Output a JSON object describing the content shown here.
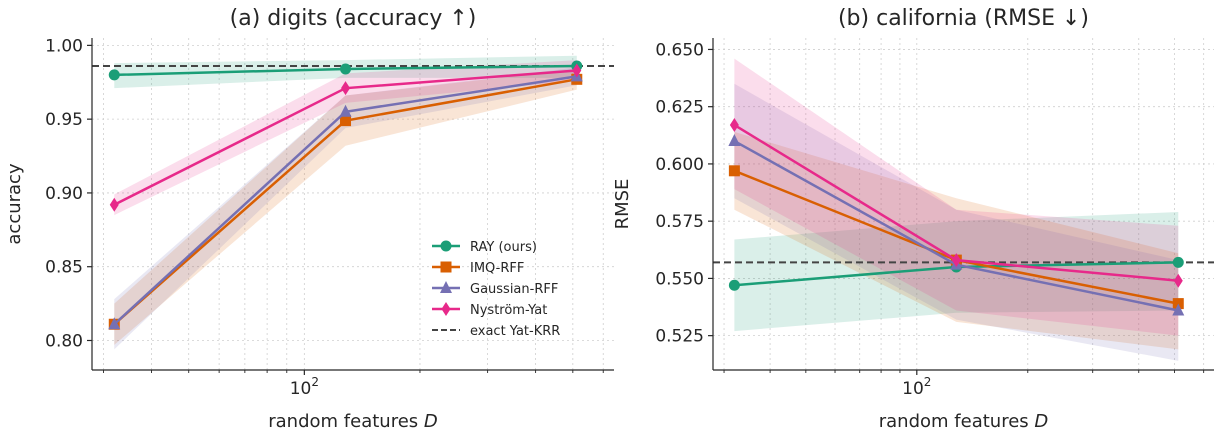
{
  "chart_data": [
    {
      "type": "line",
      "title": "(a) digits (accuracy ↑)",
      "xlabel": "random features",
      "xlabel_var": "D",
      "ylabel": "accuracy",
      "xscale": "log",
      "xlim": [
        28,
        640
      ],
      "ylim": [
        0.78,
        1.005
      ],
      "yticks": [
        0.8,
        0.85,
        0.9,
        0.95,
        1.0
      ],
      "ytick_labels": [
        "0.80",
        "0.85",
        "0.90",
        "0.95",
        "1.00"
      ],
      "xtick_base": "10",
      "xtick_exp": "2",
      "grid": true,
      "legend_position": "lower-right",
      "x": [
        32,
        128,
        512
      ],
      "series": [
        {
          "name": "RAY (ours)",
          "color": "#1b9e77",
          "marker": "circle",
          "values": [
            0.98,
            0.984,
            0.986
          ],
          "lower": [
            0.971,
            0.978,
            0.978
          ],
          "upper": [
            0.988,
            0.99,
            0.993
          ]
        },
        {
          "name": "IMQ-RFF",
          "color": "#d95f02",
          "marker": "square",
          "values": [
            0.811,
            0.949,
            0.977
          ],
          "lower": [
            0.797,
            0.932,
            0.97
          ],
          "upper": [
            0.825,
            0.966,
            0.984
          ]
        },
        {
          "name": "Gaussian-RFF",
          "color": "#7570b3",
          "marker": "triangle",
          "values": [
            0.811,
            0.955,
            0.979
          ],
          "lower": [
            0.794,
            0.944,
            0.973
          ],
          "upper": [
            0.828,
            0.966,
            0.985
          ]
        },
        {
          "name": "Nyström-Yat",
          "color": "#e7298a",
          "marker": "diamond",
          "values": [
            0.892,
            0.971,
            0.983
          ],
          "lower": [
            0.885,
            0.961,
            0.976
          ],
          "upper": [
            0.899,
            0.981,
            0.99
          ]
        }
      ],
      "reference": {
        "name": "exact Yat-KRR",
        "value": 0.986,
        "color": "#444444"
      }
    },
    {
      "type": "line",
      "title": "(b) california (RMSE ↓)",
      "xlabel": "random features",
      "xlabel_var": "D",
      "ylabel": "RMSE",
      "xscale": "log",
      "xlim": [
        28,
        640
      ],
      "ylim": [
        0.51,
        0.655
      ],
      "yticks": [
        0.525,
        0.55,
        0.575,
        0.6,
        0.625,
        0.65
      ],
      "ytick_labels": [
        "0.525",
        "0.550",
        "0.575",
        "0.600",
        "0.625",
        "0.650"
      ],
      "xtick_base": "10",
      "xtick_exp": "2",
      "grid": true,
      "x": [
        32,
        128,
        512
      ],
      "series": [
        {
          "name": "RAY (ours)",
          "color": "#1b9e77",
          "marker": "circle",
          "values": [
            0.547,
            0.555,
            0.557
          ],
          "lower": [
            0.527,
            0.535,
            0.536
          ],
          "upper": [
            0.567,
            0.575,
            0.579
          ]
        },
        {
          "name": "IMQ-RFF",
          "color": "#d95f02",
          "marker": "square",
          "values": [
            0.597,
            0.558,
            0.539
          ],
          "lower": [
            0.58,
            0.531,
            0.519
          ],
          "upper": [
            0.614,
            0.585,
            0.561
          ]
        },
        {
          "name": "Gaussian-RFF",
          "color": "#7570b3",
          "marker": "triangle",
          "values": [
            0.61,
            0.556,
            0.536
          ],
          "lower": [
            0.585,
            0.532,
            0.514
          ],
          "upper": [
            0.635,
            0.58,
            0.558
          ]
        },
        {
          "name": "Nyström-Yat",
          "color": "#e7298a",
          "marker": "diamond",
          "values": [
            0.617,
            0.558,
            0.549
          ],
          "lower": [
            0.589,
            0.536,
            0.525
          ],
          "upper": [
            0.646,
            0.58,
            0.573
          ]
        }
      ],
      "reference": {
        "name": "exact Yat-KRR",
        "value": 0.557,
        "color": "#444444"
      }
    }
  ]
}
